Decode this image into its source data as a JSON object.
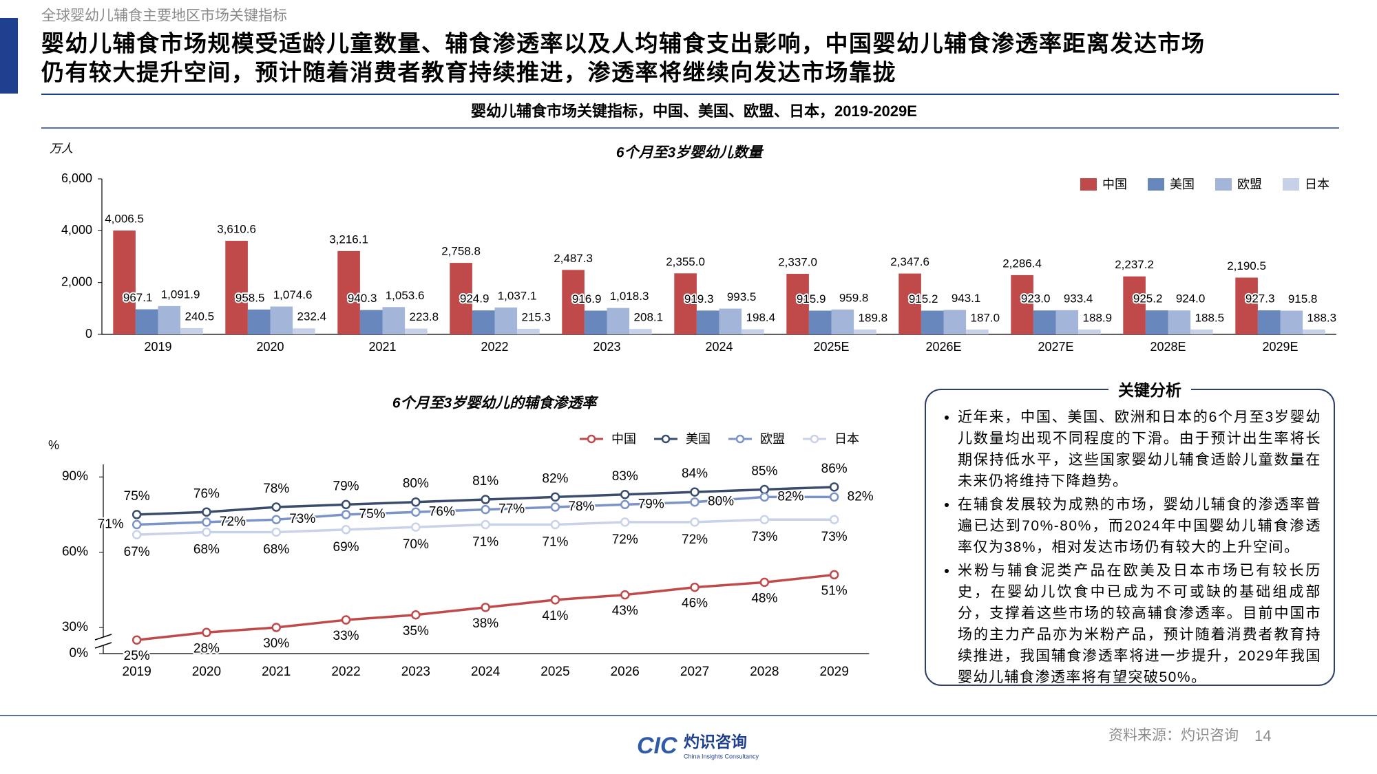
{
  "header": {
    "section": "全球婴幼儿辅食主要地区市场关键指标",
    "title": [
      "婴幼儿辅食市场规模受适龄儿童数量、辅食渗透率以及人均辅食支出影响，中国婴幼儿辅食渗透率距离发达市场",
      "仍有较大提升空间，预计随着消费者教育持续推进，渗透率将继续向发达市场靠拢"
    ],
    "subtitle": "婴幼儿辅食市场关键指标，中国、美国、欧盟、日本，2019-2029E"
  },
  "chart_data": [
    {
      "type": "bar",
      "title": "6个月至3岁婴幼儿数量",
      "y_unit": "万人",
      "categories": [
        "2019",
        "2020",
        "2021",
        "2022",
        "2023",
        "2024",
        "2025E",
        "2026E",
        "2027E",
        "2028E",
        "2029E"
      ],
      "series": [
        {
          "name": "中国",
          "color": "#c0494a",
          "values": [
            4006.5,
            3610.6,
            3216.1,
            2758.8,
            2487.3,
            2355.0,
            2337.0,
            2347.6,
            2286.4,
            2237.2,
            2190.5
          ],
          "value_labels": [
            "4,006.5",
            "3,610.6",
            "3,216.1",
            "2,758.8",
            "2,487.3",
            "2,355.0",
            "2,337.0",
            "2,347.6",
            "2,286.4",
            "2,237.2",
            "2,190.5"
          ]
        },
        {
          "name": "美国",
          "color": "#6787bd",
          "values": [
            967.1,
            958.5,
            940.3,
            924.9,
            916.9,
            919.3,
            915.9,
            915.2,
            923.0,
            925.2,
            927.3
          ],
          "value_labels": [
            "967.1",
            "958.5",
            "940.3",
            "924.9",
            "916.9",
            "919.3",
            "915.9",
            "915.2",
            "923.0",
            "925.2",
            "927.3"
          ]
        },
        {
          "name": "欧盟",
          "color": "#a3b5d9",
          "values": [
            1091.9,
            1074.6,
            1053.6,
            1037.1,
            1018.3,
            993.5,
            959.8,
            943.1,
            933.4,
            924.0,
            915.8
          ],
          "value_labels": [
            "1,091.9",
            "1,074.6",
            "1,053.6",
            "1,037.1",
            "1,018.3",
            "993.5",
            "959.8",
            "943.1",
            "933.4",
            "924.0",
            "915.8"
          ]
        },
        {
          "name": "日本",
          "color": "#c6d1e8",
          "values": [
            240.5,
            232.4,
            223.8,
            215.3,
            208.1,
            198.4,
            189.8,
            187.0,
            188.9,
            188.5,
            188.3
          ],
          "value_labels": [
            "240.5",
            "232.4",
            "223.8",
            "215.3",
            "208.1",
            "198.4",
            "189.8",
            "187.0",
            "188.9",
            "188.5",
            "188.3"
          ]
        }
      ],
      "ylim": [
        0,
        6000
      ],
      "yticks": [
        0,
        {
          "value": 2000,
          "label": "2,000"
        },
        {
          "value": 4000,
          "label": "4,000"
        },
        {
          "value": 6000,
          "label": "6,000"
        }
      ],
      "legend": "upper right"
    },
    {
      "type": "line",
      "title": "6个月至3岁婴幼儿的辅食渗透率",
      "y_unit": "%",
      "categories": [
        "2019",
        "2020",
        "2021",
        "2022",
        "2023",
        "2024",
        "2025",
        "2026",
        "2027",
        "2028",
        "2029"
      ],
      "series": [
        {
          "name": "中国",
          "color": "#c0494a",
          "values": [
            25,
            28,
            30,
            33,
            35,
            38,
            41,
            43,
            46,
            48,
            51
          ],
          "value_labels": [
            "25%",
            "28%",
            "30%",
            "33%",
            "35%",
            "38%",
            "41%",
            "43%",
            "46%",
            "48%",
            "51%"
          ]
        },
        {
          "name": "美国",
          "color": "#3a4c6c",
          "values": [
            75,
            76,
            78,
            79,
            80,
            81,
            82,
            83,
            84,
            85,
            86
          ],
          "value_labels": [
            "75%",
            "76%",
            "78%",
            "79%",
            "80%",
            "81%",
            "82%",
            "83%",
            "84%",
            "85%",
            "86%"
          ]
        },
        {
          "name": "欧盟",
          "color": "#7b93c6",
          "values": [
            71,
            72,
            73,
            75,
            76,
            77,
            78,
            79,
            80,
            82,
            82
          ],
          "value_labels": [
            "71%",
            "72%",
            "73%",
            "75%",
            "76%",
            "77%",
            "78%",
            "79%",
            "80%",
            "82%",
            "82%"
          ]
        },
        {
          "name": "日本",
          "color": "#c8d2e8",
          "values": [
            67,
            68,
            68,
            69,
            70,
            71,
            71,
            72,
            72,
            73,
            73
          ],
          "value_labels": [
            "67%",
            "68%",
            "68%",
            "69%",
            "70%",
            "71%",
            "71%",
            "72%",
            "72%",
            "73%",
            "73%"
          ]
        }
      ],
      "ylim": [
        0,
        95
      ],
      "yticks": [
        {
          "value": 0,
          "label": "0%"
        },
        {
          "value": 30,
          "label": "30%"
        },
        {
          "value": 60,
          "label": "60%"
        },
        {
          "value": 90,
          "label": "90%"
        }
      ],
      "axis_break": true,
      "legend": "upper right"
    }
  ],
  "analysis": {
    "title": "关键分析",
    "bullets": [
      "近年来，中国、美国、欧洲和日本的6个月至3岁婴幼儿数量均出现不同程度的下滑。由于预计出生率将长期保持低水平，这些国家婴幼儿辅食适龄儿童数量在未来仍将维持下降趋势。",
      "在辅食发展较为成熟的市场，婴幼儿辅食的渗透率普遍已达到70%-80%，而2024年中国婴幼儿辅食渗透率仅为38%，相对发达市场仍有较大的上升空间。",
      "米粉与辅食泥类产品在欧美及日本市场已有较长历史，在婴幼儿饮食中已成为不可或缺的基础组成部分，支撑着这些市场的较高辅食渗透率。目前中国市场的主力产品亦为米粉产品，预计随着消费者教育持续推进，我国辅食渗透率将进一步提升，2029年我国婴幼儿辅食渗透率将有望突破50%。"
    ]
  },
  "footer": {
    "logo_mark": "CIC",
    "logo_text": "灼识咨询",
    "logo_sub": "China Insights Consultancy",
    "source": "资料来源：灼识咨询",
    "page": 14
  }
}
